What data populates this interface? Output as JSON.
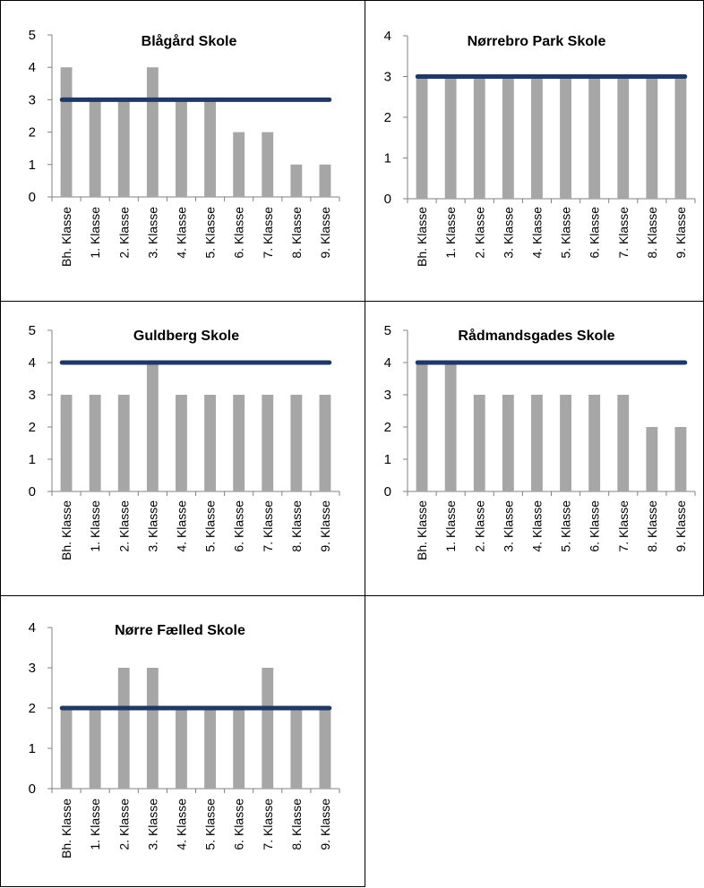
{
  "chart_data": [
    {
      "type": "bar",
      "title": "Blågård Skole",
      "categories": [
        "Bh. Klasse",
        "1. Klasse",
        "2. Klasse",
        "3. Klasse",
        "4. Klasse",
        "5. Klasse",
        "6. Klasse",
        "7. Klasse",
        "8. Klasse",
        "9. Klasse"
      ],
      "values": [
        4,
        3,
        3,
        4,
        3,
        3,
        2,
        2,
        1,
        1
      ],
      "reference_line": 3,
      "ylim": [
        0,
        5
      ],
      "yticks": [
        0,
        1,
        2,
        3,
        4,
        5
      ],
      "colors": {
        "bar": "#a6a6a6",
        "line": "#1f3864"
      }
    },
    {
      "type": "bar",
      "title": "Nørrebro Park Skole",
      "categories": [
        "Bh. Klasse",
        "1. Klasse",
        "2. Klasse",
        "3. Klasse",
        "4. Klasse",
        "5. Klasse",
        "6. Klasse",
        "7. Klasse",
        "8. Klasse",
        "9. Klasse"
      ],
      "values": [
        3,
        3,
        3,
        3,
        3,
        3,
        3,
        3,
        3,
        3
      ],
      "reference_line": 3,
      "ylim": [
        0,
        4
      ],
      "yticks": [
        0,
        1,
        2,
        3,
        4
      ],
      "colors": {
        "bar": "#a6a6a6",
        "line": "#1f3864"
      }
    },
    {
      "type": "bar",
      "title": "Guldberg Skole",
      "categories": [
        "Bh. Klasse",
        "1. Klasse",
        "2. Klasse",
        "3. Klasse",
        "4. Klasse",
        "5. Klasse",
        "6. Klasse",
        "7. Klasse",
        "8. Klasse",
        "9. Klasse"
      ],
      "values": [
        3,
        3,
        3,
        4,
        3,
        3,
        3,
        3,
        3,
        3
      ],
      "reference_line": 4,
      "ylim": [
        0,
        5
      ],
      "yticks": [
        0,
        1,
        2,
        3,
        4,
        5
      ],
      "colors": {
        "bar": "#a6a6a6",
        "line": "#1f3864"
      }
    },
    {
      "type": "bar",
      "title": "Rådmandsgades Skole",
      "categories": [
        "Bh. Klasse",
        "1. Klasse",
        "2. Klasse",
        "3. Klasse",
        "4. Klasse",
        "5. Klasse",
        "6. Klasse",
        "7. Klasse",
        "8. Klasse",
        "9. Klasse"
      ],
      "values": [
        4,
        4,
        3,
        3,
        3,
        3,
        3,
        3,
        2,
        2
      ],
      "reference_line": 4,
      "ylim": [
        0,
        5
      ],
      "yticks": [
        0,
        1,
        2,
        3,
        4,
        5
      ],
      "colors": {
        "bar": "#a6a6a6",
        "line": "#1f3864"
      }
    },
    {
      "type": "bar",
      "title": "Nørre Fælled Skole",
      "categories": [
        "Bh. Klasse",
        "1. Klasse",
        "2. Klasse",
        "3. Klasse",
        "4. Klasse",
        "5. Klasse",
        "6. Klasse",
        "7. Klasse",
        "8. Klasse",
        "9. Klasse"
      ],
      "values": [
        2,
        2,
        3,
        3,
        2,
        2,
        2,
        3,
        2,
        2
      ],
      "reference_line": 2,
      "ylim": [
        0,
        4
      ],
      "yticks": [
        0,
        1,
        2,
        3,
        4
      ],
      "colors": {
        "bar": "#a6a6a6",
        "line": "#1f3864"
      }
    }
  ]
}
